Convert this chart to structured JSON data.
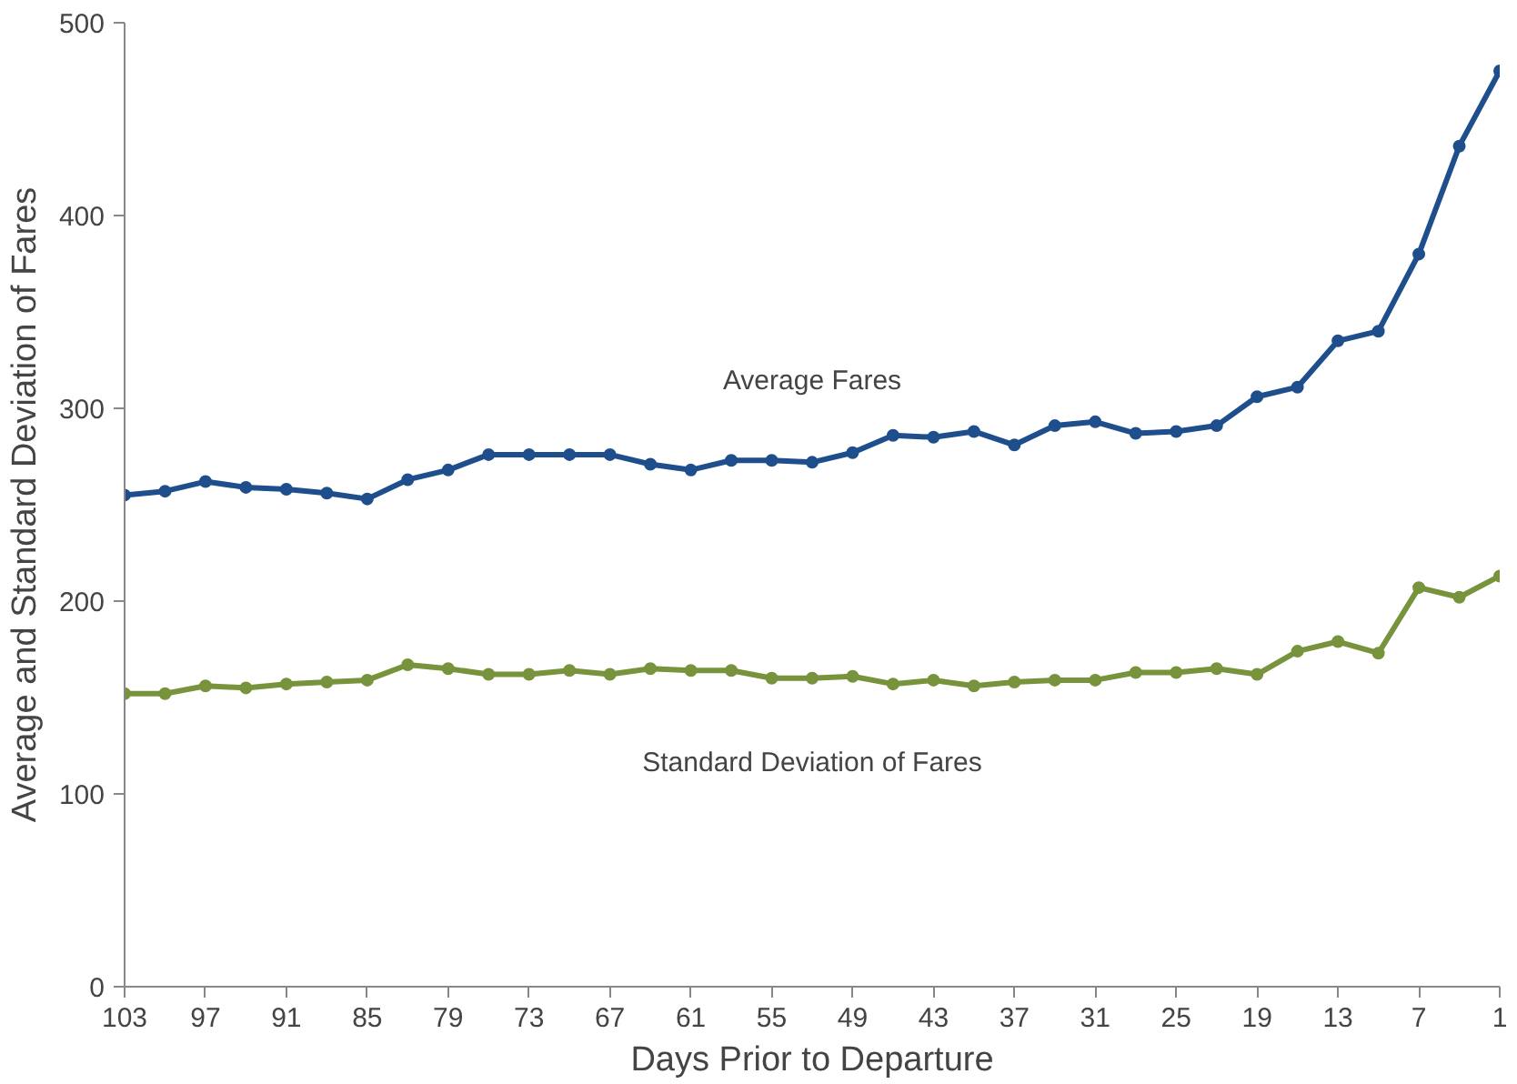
{
  "chart_data": {
    "type": "line",
    "xlabel": "Days Prior to Departure",
    "ylabel": "Average and Standard Deviation of Fares",
    "x": [
      103,
      100,
      97,
      94,
      91,
      88,
      85,
      82,
      79,
      76,
      73,
      70,
      67,
      64,
      61,
      58,
      55,
      52,
      49,
      46,
      43,
      40,
      37,
      34,
      31,
      28,
      25,
      22,
      19,
      16,
      13,
      10,
      7,
      4,
      1
    ],
    "series": [
      {
        "name": "Average Fares",
        "color": "#1f4e8c",
        "values": [
          255,
          257,
          262,
          259,
          258,
          256,
          253,
          263,
          268,
          276,
          276,
          276,
          276,
          271,
          268,
          273,
          273,
          272,
          277,
          286,
          285,
          288,
          281,
          291,
          293,
          287,
          288,
          291,
          306,
          311,
          335,
          340,
          380,
          436,
          475
        ]
      },
      {
        "name": "Standard Deviation of Fares",
        "color": "#77933c",
        "values": [
          152,
          152,
          156,
          155,
          157,
          158,
          159,
          167,
          165,
          162,
          162,
          164,
          162,
          165,
          164,
          164,
          160,
          160,
          161,
          157,
          159,
          156,
          158,
          159,
          159,
          163,
          163,
          165,
          162,
          174,
          179,
          173,
          207,
          202,
          213
        ]
      }
    ],
    "xlim": [
      103,
      1
    ],
    "xticks": [
      103,
      97,
      91,
      85,
      79,
      73,
      67,
      61,
      55,
      49,
      43,
      37,
      31,
      25,
      19,
      13,
      7,
      1
    ],
    "ylim": [
      0,
      500
    ],
    "yticks": [
      0,
      100,
      200,
      300,
      400,
      500
    ],
    "grid": false,
    "legend": false,
    "marker": "circle",
    "line_style": "solid"
  }
}
